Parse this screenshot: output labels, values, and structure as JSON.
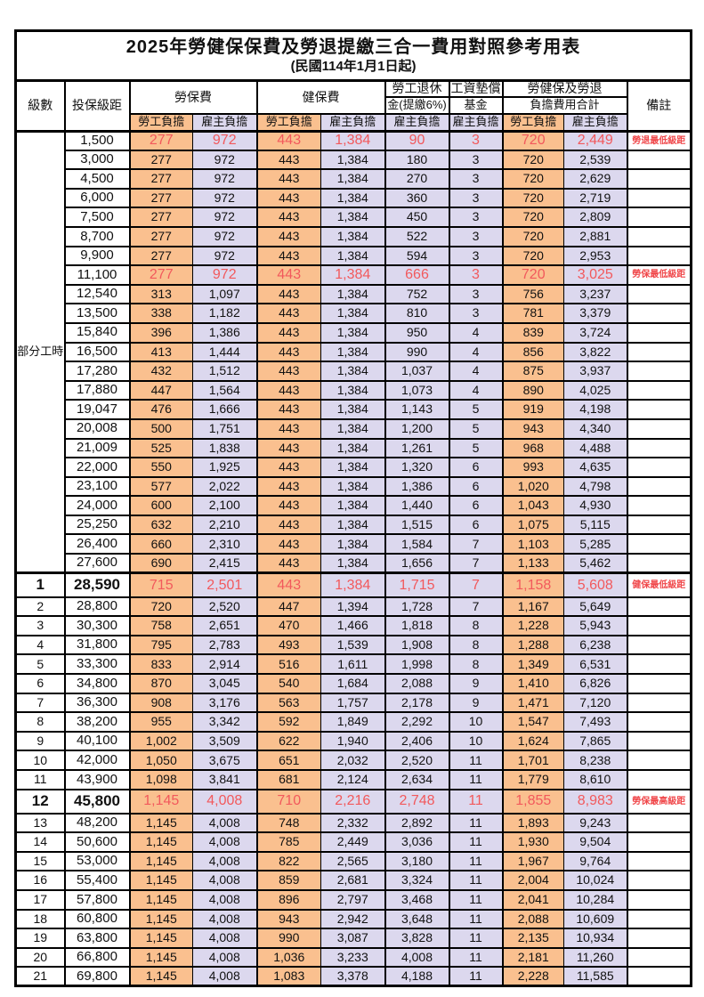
{
  "title": "2025年勞健保保費及勞退提繳三合一費用對照參考用表",
  "subtitle": "(民國114年1月1日起)",
  "colors": {
    "employee_bg": "#fac08f",
    "employer_bg": "#dcd8ee",
    "highlight_text": "#f2595c",
    "border": "#000000"
  },
  "header": {
    "level": "級數",
    "bracket": "投保級距",
    "labor_insurance": "勞保費",
    "health_insurance": "健保費",
    "pension_line1": "勞工退休",
    "pension_line2": "金(提繳6%)",
    "wage_fund_line1": "工資墊償",
    "wage_fund_line2": "基金",
    "total_line1": "勞健保及勞退",
    "total_line2": "負擔費用合計",
    "remark": "備註",
    "employee_share": "勞工負擔",
    "employer_share": "雇主負擔"
  },
  "part_time_label": "部分工時",
  "rows": [
    {
      "level": "",
      "bracket": "1,500",
      "values": [
        "277",
        "972",
        "443",
        "1,384",
        "90",
        "3",
        "720",
        "2,449"
      ],
      "remark": "勞退最低級距",
      "highlight": true,
      "bold": false,
      "tall": false
    },
    {
      "level": "",
      "bracket": "3,000",
      "values": [
        "277",
        "972",
        "443",
        "1,384",
        "180",
        "3",
        "720",
        "2,539"
      ],
      "remark": "",
      "highlight": false,
      "bold": false,
      "tall": false
    },
    {
      "level": "",
      "bracket": "4,500",
      "values": [
        "277",
        "972",
        "443",
        "1,384",
        "270",
        "3",
        "720",
        "2,629"
      ],
      "remark": "",
      "highlight": false,
      "bold": false,
      "tall": false
    },
    {
      "level": "",
      "bracket": "6,000",
      "values": [
        "277",
        "972",
        "443",
        "1,384",
        "360",
        "3",
        "720",
        "2,719"
      ],
      "remark": "",
      "highlight": false,
      "bold": false,
      "tall": false
    },
    {
      "level": "",
      "bracket": "7,500",
      "values": [
        "277",
        "972",
        "443",
        "1,384",
        "450",
        "3",
        "720",
        "2,809"
      ],
      "remark": "",
      "highlight": false,
      "bold": false,
      "tall": false
    },
    {
      "level": "",
      "bracket": "8,700",
      "values": [
        "277",
        "972",
        "443",
        "1,384",
        "522",
        "3",
        "720",
        "2,881"
      ],
      "remark": "",
      "highlight": false,
      "bold": false,
      "tall": false
    },
    {
      "level": "",
      "bracket": "9,900",
      "values": [
        "277",
        "972",
        "443",
        "1,384",
        "594",
        "3",
        "720",
        "2,953"
      ],
      "remark": "",
      "highlight": false,
      "bold": false,
      "tall": false
    },
    {
      "level": "",
      "bracket": "11,100",
      "values": [
        "277",
        "972",
        "443",
        "1,384",
        "666",
        "3",
        "720",
        "3,025"
      ],
      "remark": "勞保最低級距",
      "highlight": true,
      "bold": false,
      "tall": false
    },
    {
      "level": "",
      "bracket": "12,540",
      "values": [
        "313",
        "1,097",
        "443",
        "1,384",
        "752",
        "3",
        "756",
        "3,237"
      ],
      "remark": "",
      "highlight": false,
      "bold": false,
      "tall": false
    },
    {
      "level": "",
      "bracket": "13,500",
      "values": [
        "338",
        "1,182",
        "443",
        "1,384",
        "810",
        "3",
        "781",
        "3,379"
      ],
      "remark": "",
      "highlight": false,
      "bold": false,
      "tall": false
    },
    {
      "level": "",
      "bracket": "15,840",
      "values": [
        "396",
        "1,386",
        "443",
        "1,384",
        "950",
        "4",
        "839",
        "3,724"
      ],
      "remark": "",
      "highlight": false,
      "bold": false,
      "tall": false
    },
    {
      "level": "",
      "bracket": "16,500",
      "values": [
        "413",
        "1,444",
        "443",
        "1,384",
        "990",
        "4",
        "856",
        "3,822"
      ],
      "remark": "",
      "highlight": false,
      "bold": false,
      "tall": false
    },
    {
      "level": "",
      "bracket": "17,280",
      "values": [
        "432",
        "1,512",
        "443",
        "1,384",
        "1,037",
        "4",
        "875",
        "3,937"
      ],
      "remark": "",
      "highlight": false,
      "bold": false,
      "tall": false
    },
    {
      "level": "",
      "bracket": "17,880",
      "values": [
        "447",
        "1,564",
        "443",
        "1,384",
        "1,073",
        "4",
        "890",
        "4,025"
      ],
      "remark": "",
      "highlight": false,
      "bold": false,
      "tall": false
    },
    {
      "level": "",
      "bracket": "19,047",
      "values": [
        "476",
        "1,666",
        "443",
        "1,384",
        "1,143",
        "5",
        "919",
        "4,198"
      ],
      "remark": "",
      "highlight": false,
      "bold": false,
      "tall": false
    },
    {
      "level": "",
      "bracket": "20,008",
      "values": [
        "500",
        "1,751",
        "443",
        "1,384",
        "1,200",
        "5",
        "943",
        "4,340"
      ],
      "remark": "",
      "highlight": false,
      "bold": false,
      "tall": false
    },
    {
      "level": "",
      "bracket": "21,009",
      "values": [
        "525",
        "1,838",
        "443",
        "1,384",
        "1,261",
        "5",
        "968",
        "4,488"
      ],
      "remark": "",
      "highlight": false,
      "bold": false,
      "tall": false
    },
    {
      "level": "",
      "bracket": "22,000",
      "values": [
        "550",
        "1,925",
        "443",
        "1,384",
        "1,320",
        "6",
        "993",
        "4,635"
      ],
      "remark": "",
      "highlight": false,
      "bold": false,
      "tall": false
    },
    {
      "level": "",
      "bracket": "23,100",
      "values": [
        "577",
        "2,022",
        "443",
        "1,384",
        "1,386",
        "6",
        "1,020",
        "4,798"
      ],
      "remark": "",
      "highlight": false,
      "bold": false,
      "tall": false
    },
    {
      "level": "",
      "bracket": "24,000",
      "values": [
        "600",
        "2,100",
        "443",
        "1,384",
        "1,440",
        "6",
        "1,043",
        "4,930"
      ],
      "remark": "",
      "highlight": false,
      "bold": false,
      "tall": false
    },
    {
      "level": "",
      "bracket": "25,250",
      "values": [
        "632",
        "2,210",
        "443",
        "1,384",
        "1,515",
        "6",
        "1,075",
        "5,115"
      ],
      "remark": "",
      "highlight": false,
      "bold": false,
      "tall": false
    },
    {
      "level": "",
      "bracket": "26,400",
      "values": [
        "660",
        "2,310",
        "443",
        "1,384",
        "1,584",
        "7",
        "1,103",
        "5,285"
      ],
      "remark": "",
      "highlight": false,
      "bold": false,
      "tall": false
    },
    {
      "level": "",
      "bracket": "27,600",
      "values": [
        "690",
        "2,415",
        "443",
        "1,384",
        "1,656",
        "7",
        "1,133",
        "5,462"
      ],
      "remark": "",
      "highlight": false,
      "bold": false,
      "tall": false
    },
    {
      "level": "1",
      "bracket": "28,590",
      "values": [
        "715",
        "2,501",
        "443",
        "1,384",
        "1,715",
        "7",
        "1,158",
        "5,608"
      ],
      "remark": "健保最低級距",
      "highlight": true,
      "bold": true,
      "tall": true
    },
    {
      "level": "2",
      "bracket": "28,800",
      "values": [
        "720",
        "2,520",
        "447",
        "1,394",
        "1,728",
        "7",
        "1,167",
        "5,649"
      ],
      "remark": "",
      "highlight": false,
      "bold": false,
      "tall": false
    },
    {
      "level": "3",
      "bracket": "30,300",
      "values": [
        "758",
        "2,651",
        "470",
        "1,466",
        "1,818",
        "8",
        "1,228",
        "5,943"
      ],
      "remark": "",
      "highlight": false,
      "bold": false,
      "tall": false
    },
    {
      "level": "4",
      "bracket": "31,800",
      "values": [
        "795",
        "2,783",
        "493",
        "1,539",
        "1,908",
        "8",
        "1,288",
        "6,238"
      ],
      "remark": "",
      "highlight": false,
      "bold": false,
      "tall": false
    },
    {
      "level": "5",
      "bracket": "33,300",
      "values": [
        "833",
        "2,914",
        "516",
        "1,611",
        "1,998",
        "8",
        "1,349",
        "6,531"
      ],
      "remark": "",
      "highlight": false,
      "bold": false,
      "tall": false
    },
    {
      "level": "6",
      "bracket": "34,800",
      "values": [
        "870",
        "3,045",
        "540",
        "1,684",
        "2,088",
        "9",
        "1,410",
        "6,826"
      ],
      "remark": "",
      "highlight": false,
      "bold": false,
      "tall": false
    },
    {
      "level": "7",
      "bracket": "36,300",
      "values": [
        "908",
        "3,176",
        "563",
        "1,757",
        "2,178",
        "9",
        "1,471",
        "7,120"
      ],
      "remark": "",
      "highlight": false,
      "bold": false,
      "tall": false
    },
    {
      "level": "8",
      "bracket": "38,200",
      "values": [
        "955",
        "3,342",
        "592",
        "1,849",
        "2,292",
        "10",
        "1,547",
        "7,493"
      ],
      "remark": "",
      "highlight": false,
      "bold": false,
      "tall": false
    },
    {
      "level": "9",
      "bracket": "40,100",
      "values": [
        "1,002",
        "3,509",
        "622",
        "1,940",
        "2,406",
        "10",
        "1,624",
        "7,865"
      ],
      "remark": "",
      "highlight": false,
      "bold": false,
      "tall": false
    },
    {
      "level": "10",
      "bracket": "42,000",
      "values": [
        "1,050",
        "3,675",
        "651",
        "2,032",
        "2,520",
        "11",
        "1,701",
        "8,238"
      ],
      "remark": "",
      "highlight": false,
      "bold": false,
      "tall": false
    },
    {
      "level": "11",
      "bracket": "43,900",
      "values": [
        "1,098",
        "3,841",
        "681",
        "2,124",
        "2,634",
        "11",
        "1,779",
        "8,610"
      ],
      "remark": "",
      "highlight": false,
      "bold": false,
      "tall": false
    },
    {
      "level": "12",
      "bracket": "45,800",
      "values": [
        "1,145",
        "4,008",
        "710",
        "2,216",
        "2,748",
        "11",
        "1,855",
        "8,983"
      ],
      "remark": "勞保最高級距",
      "highlight": true,
      "bold": true,
      "tall": true
    },
    {
      "level": "13",
      "bracket": "48,200",
      "values": [
        "1,145",
        "4,008",
        "748",
        "2,332",
        "2,892",
        "11",
        "1,893",
        "9,243"
      ],
      "remark": "",
      "highlight": false,
      "bold": false,
      "tall": false
    },
    {
      "level": "14",
      "bracket": "50,600",
      "values": [
        "1,145",
        "4,008",
        "785",
        "2,449",
        "3,036",
        "11",
        "1,930",
        "9,504"
      ],
      "remark": "",
      "highlight": false,
      "bold": false,
      "tall": false
    },
    {
      "level": "15",
      "bracket": "53,000",
      "values": [
        "1,145",
        "4,008",
        "822",
        "2,565",
        "3,180",
        "11",
        "1,967",
        "9,764"
      ],
      "remark": "",
      "highlight": false,
      "bold": false,
      "tall": false
    },
    {
      "level": "16",
      "bracket": "55,400",
      "values": [
        "1,145",
        "4,008",
        "859",
        "2,681",
        "3,324",
        "11",
        "2,004",
        "10,024"
      ],
      "remark": "",
      "highlight": false,
      "bold": false,
      "tall": false
    },
    {
      "level": "17",
      "bracket": "57,800",
      "values": [
        "1,145",
        "4,008",
        "896",
        "2,797",
        "3,468",
        "11",
        "2,041",
        "10,284"
      ],
      "remark": "",
      "highlight": false,
      "bold": false,
      "tall": false
    },
    {
      "level": "18",
      "bracket": "60,800",
      "values": [
        "1,145",
        "4,008",
        "943",
        "2,942",
        "3,648",
        "11",
        "2,088",
        "10,609"
      ],
      "remark": "",
      "highlight": false,
      "bold": false,
      "tall": false
    },
    {
      "level": "19",
      "bracket": "63,800",
      "values": [
        "1,145",
        "4,008",
        "990",
        "3,087",
        "3,828",
        "11",
        "2,135",
        "10,934"
      ],
      "remark": "",
      "highlight": false,
      "bold": false,
      "tall": false
    },
    {
      "level": "20",
      "bracket": "66,800",
      "values": [
        "1,145",
        "4,008",
        "1,036",
        "3,233",
        "4,008",
        "11",
        "2,181",
        "11,260"
      ],
      "remark": "",
      "highlight": false,
      "bold": false,
      "tall": false
    },
    {
      "level": "21",
      "bracket": "69,800",
      "values": [
        "1,145",
        "4,008",
        "1,083",
        "3,378",
        "4,188",
        "11",
        "2,228",
        "11,585"
      ],
      "remark": "",
      "highlight": false,
      "bold": false,
      "tall": false
    }
  ],
  "value_column_kind": [
    "emp",
    "er",
    "emp",
    "er",
    "er",
    "er",
    "emp",
    "er"
  ],
  "part_time_row_span": 23
}
